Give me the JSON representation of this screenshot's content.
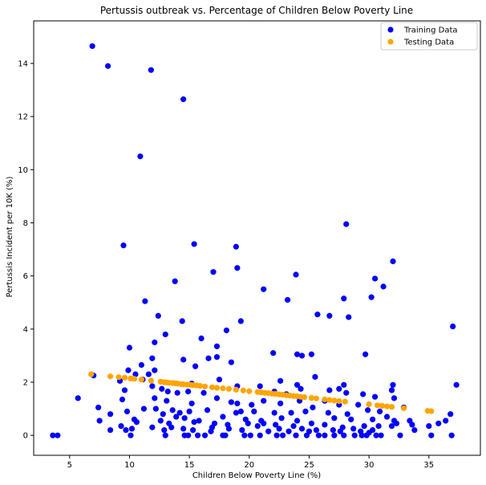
{
  "chart_data": {
    "type": "scatter",
    "title": "Pertussis outbreak vs. Percentage of Children Below Poverty Line",
    "xlabel": "Children Below Poverty Line (%)",
    "ylabel": "Pertussis Incident per 10K (%)",
    "xlim": [
      2.0,
      39.3
    ],
    "ylim": [
      -0.75,
      15.6
    ],
    "xticks": [
      5,
      10,
      15,
      20,
      25,
      30,
      35
    ],
    "yticks": [
      0,
      2,
      4,
      6,
      8,
      10,
      12,
      14
    ],
    "grid": false,
    "legend_position": "top-right",
    "series": [
      {
        "name": "Training Data",
        "color": "#0000ff",
        "points": [
          [
            6.9,
            14.65
          ],
          [
            8.2,
            13.9
          ],
          [
            11.8,
            13.75
          ],
          [
            14.5,
            12.65
          ],
          [
            10.9,
            10.5
          ],
          [
            9.5,
            7.15
          ],
          [
            15.4,
            7.2
          ],
          [
            18.9,
            7.1
          ],
          [
            28.1,
            7.95
          ],
          [
            32.0,
            6.55
          ],
          [
            17.0,
            6.15
          ],
          [
            19.0,
            6.3
          ],
          [
            23.9,
            6.05
          ],
          [
            30.5,
            5.9
          ],
          [
            31.2,
            5.6
          ],
          [
            13.8,
            5.8
          ],
          [
            21.2,
            5.5
          ],
          [
            11.3,
            5.05
          ],
          [
            23.2,
            5.1
          ],
          [
            27.9,
            5.15
          ],
          [
            30.2,
            5.2
          ],
          [
            25.7,
            4.55
          ],
          [
            26.7,
            4.5
          ],
          [
            28.3,
            4.45
          ],
          [
            12.4,
            4.5
          ],
          [
            14.4,
            4.3
          ],
          [
            19.3,
            4.3
          ],
          [
            16.0,
            3.65
          ],
          [
            18.1,
            3.95
          ],
          [
            37.0,
            4.1
          ],
          [
            10.0,
            3.3
          ],
          [
            12.1,
            3.5
          ],
          [
            13.0,
            3.8
          ],
          [
            17.3,
            3.35
          ],
          [
            24.0,
            3.05
          ],
          [
            24.4,
            3.0
          ],
          [
            25.2,
            3.05
          ],
          [
            29.7,
            3.05
          ],
          [
            22.0,
            3.1
          ],
          [
            16.6,
            2.9
          ],
          [
            17.3,
            2.95
          ],
          [
            11.9,
            2.9
          ],
          [
            14.5,
            2.85
          ],
          [
            18.5,
            2.75
          ],
          [
            11.0,
            2.65
          ],
          [
            15.5,
            2.6
          ],
          [
            12.1,
            2.45
          ],
          [
            9.9,
            2.45
          ],
          [
            10.5,
            2.3
          ],
          [
            7.0,
            2.25
          ],
          [
            11.6,
            2.3
          ],
          [
            17.5,
            2.1
          ],
          [
            25.5,
            2.2
          ],
          [
            32.0,
            1.9
          ],
          [
            37.3,
            1.9
          ],
          [
            11.1,
            2.1
          ],
          [
            9.2,
            2.05
          ],
          [
            15.2,
            1.95
          ],
          [
            22.6,
            2.05
          ],
          [
            24.0,
            1.9
          ],
          [
            20.9,
            1.85
          ],
          [
            19.0,
            1.85
          ],
          [
            24.3,
            1.75
          ],
          [
            27.9,
            1.9
          ],
          [
            27.5,
            1.75
          ],
          [
            31.9,
            1.7
          ],
          [
            26.7,
            1.7
          ],
          [
            22.1,
            1.65
          ],
          [
            9.6,
            1.7
          ],
          [
            11.9,
            1.85
          ],
          [
            12.7,
            1.75
          ],
          [
            13.2,
            1.65
          ],
          [
            14.0,
            1.6
          ],
          [
            14.9,
            1.65
          ],
          [
            16.2,
            1.6
          ],
          [
            23.1,
            1.55
          ],
          [
            28.1,
            1.6
          ],
          [
            29.5,
            1.55
          ],
          [
            30.5,
            1.45
          ],
          [
            32.1,
            1.4
          ],
          [
            5.7,
            1.4
          ],
          [
            9.4,
            1.35
          ],
          [
            12.1,
            1.4
          ],
          [
            13.1,
            1.3
          ],
          [
            15.2,
            1.2
          ],
          [
            17.3,
            1.4
          ],
          [
            18.5,
            1.25
          ],
          [
            19.0,
            1.2
          ],
          [
            20.2,
            1.15
          ],
          [
            21.2,
            1.3
          ],
          [
            22.6,
            1.2
          ],
          [
            24.2,
            1.3
          ],
          [
            25.3,
            1.05
          ],
          [
            26.3,
            1.3
          ],
          [
            27.5,
            1.15
          ],
          [
            29.1,
            1.15
          ],
          [
            30.9,
            0.9
          ],
          [
            32.9,
            1.05
          ],
          [
            7.4,
            1.05
          ],
          [
            9.8,
            0.9
          ],
          [
            11.2,
            1.0
          ],
          [
            12.2,
            1.0
          ],
          [
            13.6,
            0.95
          ],
          [
            14.2,
            0.85
          ],
          [
            15.0,
            0.9
          ],
          [
            16.5,
            0.95
          ],
          [
            18.9,
            0.85
          ],
          [
            19.3,
            0.9
          ],
          [
            20.4,
            0.9
          ],
          [
            22.1,
            0.85
          ],
          [
            23.5,
            0.85
          ],
          [
            24.7,
            0.9
          ],
          [
            26.6,
            0.85
          ],
          [
            28.2,
            0.8
          ],
          [
            29.9,
            0.95
          ],
          [
            31.5,
            0.7
          ],
          [
            33.4,
            0.55
          ],
          [
            35.8,
            0.45
          ],
          [
            36.4,
            0.55
          ],
          [
            36.8,
            0.8
          ],
          [
            8.4,
            0.8
          ],
          [
            10.4,
            0.6
          ],
          [
            12.8,
            0.8
          ],
          [
            13.9,
            0.7
          ],
          [
            14.6,
            0.65
          ],
          [
            15.8,
            0.55
          ],
          [
            17.8,
            0.7
          ],
          [
            19.7,
            0.6
          ],
          [
            21.0,
            0.55
          ],
          [
            22.7,
            0.65
          ],
          [
            24.0,
            0.55
          ],
          [
            25.2,
            0.45
          ],
          [
            27.1,
            0.65
          ],
          [
            28.5,
            0.6
          ],
          [
            30.3,
            0.6
          ],
          [
            32.1,
            0.55
          ],
          [
            33.6,
            0.4
          ],
          [
            35.0,
            0.35
          ],
          [
            7.5,
            0.55
          ],
          [
            10.6,
            0.5
          ],
          [
            12.6,
            0.55
          ],
          [
            13.3,
            0.45
          ],
          [
            15.4,
            0.5
          ],
          [
            17.1,
            0.45
          ],
          [
            18.2,
            0.4
          ],
          [
            19.9,
            0.45
          ],
          [
            21.2,
            0.45
          ],
          [
            22.2,
            0.4
          ],
          [
            23.7,
            0.35
          ],
          [
            26.3,
            0.4
          ],
          [
            27.8,
            0.3
          ],
          [
            29.6,
            0.35
          ],
          [
            30.8,
            0.35
          ],
          [
            32.3,
            0.45
          ],
          [
            9.3,
            0.35
          ],
          [
            11.9,
            0.3
          ],
          [
            13.5,
            0.3
          ],
          [
            14.5,
            0.25
          ],
          [
            16.9,
            0.3
          ],
          [
            18.3,
            0.25
          ],
          [
            20.7,
            0.35
          ],
          [
            22.5,
            0.25
          ],
          [
            24.4,
            0.25
          ],
          [
            25.6,
            0.2
          ],
          [
            27.0,
            0.2
          ],
          [
            28.7,
            0.25
          ],
          [
            30.3,
            0.2
          ],
          [
            31.9,
            0.35
          ],
          [
            33.8,
            0.2
          ],
          [
            8.4,
            0.2
          ],
          [
            10.2,
            0.25
          ],
          [
            12.9,
            0.2
          ],
          [
            15.3,
            0.2
          ],
          [
            16.8,
            0.15
          ],
          [
            19.4,
            0.2
          ],
          [
            21.6,
            0.15
          ],
          [
            23.3,
            0.15
          ],
          [
            25.0,
            0.15
          ],
          [
            27.6,
            0.15
          ],
          [
            29.3,
            0.15
          ],
          [
            30.0,
            0.1
          ],
          [
            9.7,
            0.2
          ],
          [
            10.1,
            0.0
          ],
          [
            13.0,
            0.0
          ],
          [
            14.6,
            0.0
          ],
          [
            15.7,
            0.0
          ],
          [
            17.8,
            0.0
          ],
          [
            19.6,
            0.0
          ],
          [
            20.9,
            0.0
          ],
          [
            22.8,
            0.0
          ],
          [
            23.9,
            0.0
          ],
          [
            24.8,
            0.0
          ],
          [
            26.3,
            0.0
          ],
          [
            27.9,
            0.0
          ],
          [
            28.8,
            0.0
          ],
          [
            29.8,
            0.0
          ],
          [
            31.0,
            0.0
          ],
          [
            32.6,
            0.0
          ],
          [
            35.2,
            0.0
          ],
          [
            36.9,
            0.0
          ],
          [
            3.6,
            0.0
          ],
          [
            4.0,
            0.0
          ],
          [
            18.0,
            0.0
          ],
          [
            20.1,
            0.0
          ],
          [
            22.3,
            0.0
          ],
          [
            25.8,
            0.0
          ],
          [
            27.1,
            0.0
          ],
          [
            29.4,
            0.0
          ],
          [
            30.6,
            0.0
          ],
          [
            14.9,
            0.0
          ],
          [
            16.3,
            0.0
          ]
        ]
      },
      {
        "name": "Testing Data",
        "color": "#ffa500",
        "points": [
          [
            6.8,
            2.3
          ],
          [
            8.4,
            2.22
          ],
          [
            9.1,
            2.19
          ],
          [
            9.6,
            2.17
          ],
          [
            10.1,
            2.14
          ],
          [
            10.4,
            2.13
          ],
          [
            11.0,
            2.1
          ],
          [
            11.8,
            2.06
          ],
          [
            12.6,
            2.02
          ],
          [
            12.9,
            2.0
          ],
          [
            13.1,
            1.99
          ],
          [
            13.3,
            1.98
          ],
          [
            13.6,
            1.97
          ],
          [
            13.8,
            1.96
          ],
          [
            14.0,
            1.95
          ],
          [
            14.3,
            1.93
          ],
          [
            14.5,
            1.92
          ],
          [
            14.8,
            1.91
          ],
          [
            15.1,
            1.9
          ],
          [
            15.3,
            1.89
          ],
          [
            15.6,
            1.88
          ],
          [
            15.9,
            1.86
          ],
          [
            16.3,
            1.84
          ],
          [
            16.9,
            1.81
          ],
          [
            17.3,
            1.79
          ],
          [
            17.8,
            1.77
          ],
          [
            18.3,
            1.75
          ],
          [
            18.9,
            1.72
          ],
          [
            19.5,
            1.69
          ],
          [
            20.0,
            1.66
          ],
          [
            20.7,
            1.63
          ],
          [
            21.0,
            1.62
          ],
          [
            21.3,
            1.6
          ],
          [
            21.6,
            1.59
          ],
          [
            21.9,
            1.57
          ],
          [
            22.2,
            1.56
          ],
          [
            22.5,
            1.54
          ],
          [
            22.8,
            1.53
          ],
          [
            23.1,
            1.51
          ],
          [
            23.4,
            1.5
          ],
          [
            23.7,
            1.48
          ],
          [
            24.0,
            1.47
          ],
          [
            24.3,
            1.45
          ],
          [
            24.6,
            1.44
          ],
          [
            25.2,
            1.41
          ],
          [
            25.6,
            1.39
          ],
          [
            26.3,
            1.35
          ],
          [
            26.7,
            1.33
          ],
          [
            27.1,
            1.31
          ],
          [
            27.5,
            1.29
          ],
          [
            28.0,
            1.27
          ],
          [
            30.0,
            1.17
          ],
          [
            30.7,
            1.13
          ],
          [
            31.1,
            1.11
          ],
          [
            31.5,
            1.09
          ],
          [
            31.9,
            1.07
          ],
          [
            32.9,
            1.02
          ],
          [
            34.9,
            0.92
          ],
          [
            35.2,
            0.91
          ]
        ]
      }
    ]
  }
}
